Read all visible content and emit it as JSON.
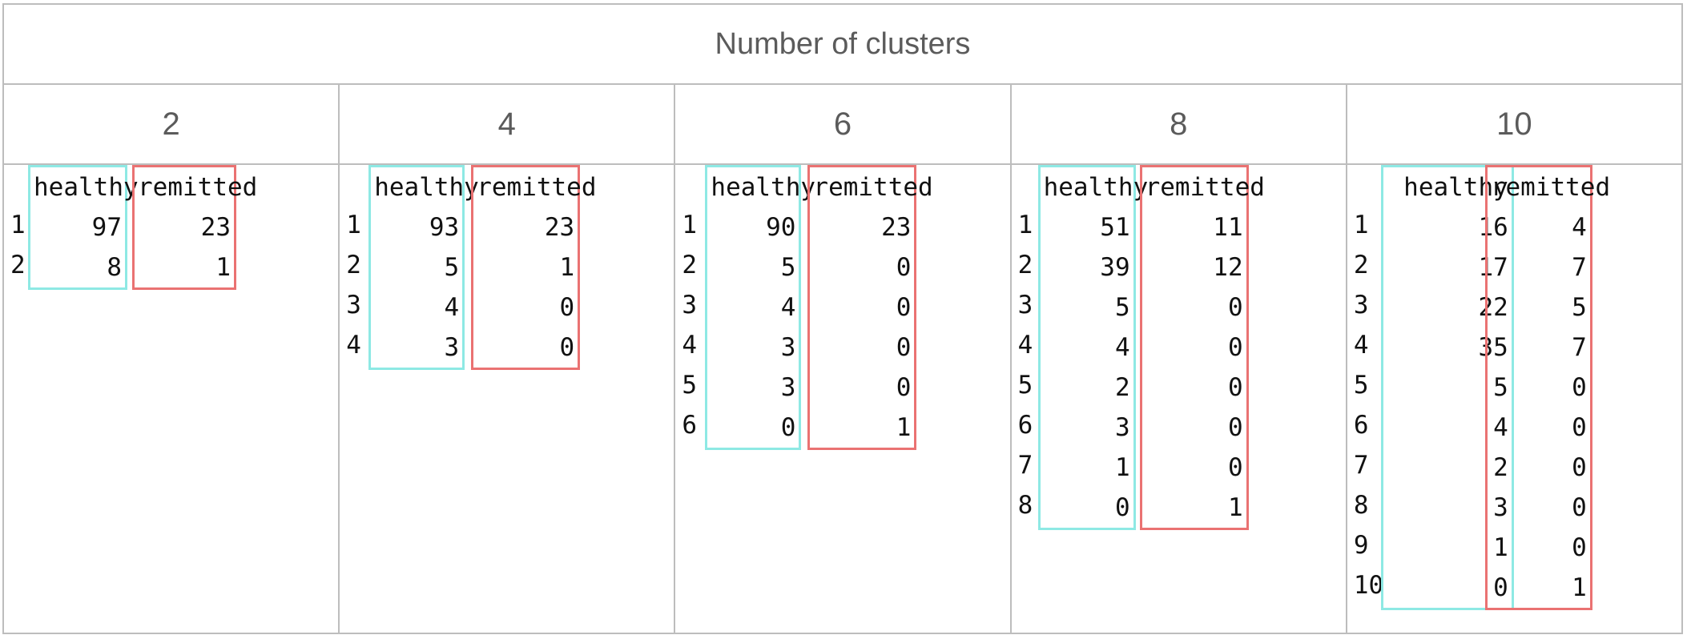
{
  "title": "Number of clusters",
  "column_labels": {
    "healthy": "healthy",
    "remitted": "remitted"
  },
  "colors": {
    "healthy": "#8ee9e4",
    "remitted": "#ea7272"
  },
  "panels": [
    {
      "k": "2",
      "rows": [
        {
          "i": "1",
          "healthy": "97",
          "remitted": "23"
        },
        {
          "i": "2",
          "healthy": "8",
          "remitted": "1"
        }
      ]
    },
    {
      "k": "4",
      "rows": [
        {
          "i": "1",
          "healthy": "93",
          "remitted": "23"
        },
        {
          "i": "2",
          "healthy": "5",
          "remitted": "1"
        },
        {
          "i": "3",
          "healthy": "4",
          "remitted": "0"
        },
        {
          "i": "4",
          "healthy": "3",
          "remitted": "0"
        }
      ]
    },
    {
      "k": "6",
      "rows": [
        {
          "i": "1",
          "healthy": "90",
          "remitted": "23"
        },
        {
          "i": "2",
          "healthy": "5",
          "remitted": "0"
        },
        {
          "i": "3",
          "healthy": "4",
          "remitted": "0"
        },
        {
          "i": "4",
          "healthy": "3",
          "remitted": "0"
        },
        {
          "i": "5",
          "healthy": "3",
          "remitted": "0"
        },
        {
          "i": "6",
          "healthy": "0",
          "remitted": "1"
        }
      ]
    },
    {
      "k": "8",
      "rows": [
        {
          "i": "1",
          "healthy": "51",
          "remitted": "11"
        },
        {
          "i": "2",
          "healthy": "39",
          "remitted": "12"
        },
        {
          "i": "3",
          "healthy": "5",
          "remitted": "0"
        },
        {
          "i": "4",
          "healthy": "4",
          "remitted": "0"
        },
        {
          "i": "5",
          "healthy": "2",
          "remitted": "0"
        },
        {
          "i": "6",
          "healthy": "3",
          "remitted": "0"
        },
        {
          "i": "7",
          "healthy": "1",
          "remitted": "0"
        },
        {
          "i": "8",
          "healthy": "0",
          "remitted": "1"
        }
      ]
    },
    {
      "k": "10",
      "rows": [
        {
          "i": "1",
          "healthy": "16",
          "remitted": "4"
        },
        {
          "i": "2",
          "healthy": "17",
          "remitted": "7"
        },
        {
          "i": "3",
          "healthy": "22",
          "remitted": "5"
        },
        {
          "i": "4",
          "healthy": "35",
          "remitted": "7"
        },
        {
          "i": "5",
          "healthy": "5",
          "remitted": "0"
        },
        {
          "i": "6",
          "healthy": "4",
          "remitted": "0"
        },
        {
          "i": "7",
          "healthy": "2",
          "remitted": "0"
        },
        {
          "i": "8",
          "healthy": "3",
          "remitted": "0"
        },
        {
          "i": "9",
          "healthy": "1",
          "remitted": "0"
        },
        {
          "i": "10",
          "healthy": "0",
          "remitted": "1"
        }
      ]
    }
  ]
}
